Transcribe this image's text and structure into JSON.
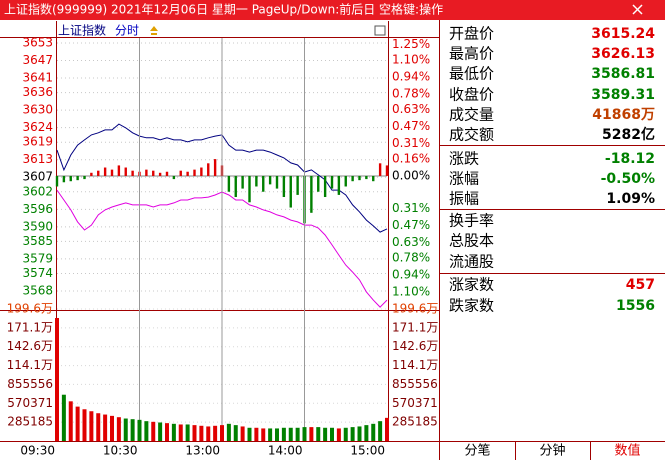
{
  "title_bar": {
    "title": "上证指数(999999) 2021年12月06日 星期一 PageUp/Down:前后日 空格键:操作"
  },
  "chart_data": [
    {
      "type": "line",
      "title": "上证指数",
      "subtitle": "分时",
      "x": [
        "09:30",
        "09:35",
        "09:40",
        "09:45",
        "09:50",
        "09:55",
        "10:00",
        "10:05",
        "10:10",
        "10:15",
        "10:20",
        "10:25",
        "10:30",
        "10:35",
        "10:40",
        "10:45",
        "10:50",
        "10:55",
        "11:00",
        "11:05",
        "11:10",
        "11:15",
        "11:20",
        "11:25",
        "11:30",
        "13:05",
        "13:10",
        "13:15",
        "13:20",
        "13:25",
        "13:30",
        "13:35",
        "13:40",
        "13:45",
        "13:50",
        "13:55",
        "14:00",
        "14:05",
        "14:10",
        "14:15",
        "14:20",
        "14:25",
        "14:30",
        "14:35",
        "14:40",
        "14:45",
        "14:50",
        "14:55",
        "15:00"
      ],
      "xlim": [
        "09:30",
        "15:00"
      ],
      "ylim": [
        3561.5,
        3654.7
      ],
      "yticks": [
        3653,
        3647,
        3641,
        3636,
        3630,
        3624,
        3619,
        3613,
        3607,
        3602,
        3596,
        3590,
        3585,
        3579,
        3574,
        3568
      ],
      "y2lim": [
        -1.273,
        1.31
      ],
      "y2ticks": [
        {
          "value": 1.25,
          "label": "1.25%"
        },
        {
          "value": 1.1,
          "label": "1.10%"
        },
        {
          "value": 0.94,
          "label": "0.94%"
        },
        {
          "value": 0.78,
          "label": "0.78%"
        },
        {
          "value": 0.63,
          "label": "0.63%"
        },
        {
          "value": 0.47,
          "label": "0.47%"
        },
        {
          "value": 0.31,
          "label": "0.31%"
        },
        {
          "value": 0.16,
          "label": "0.16%"
        },
        {
          "value": 0,
          "label": "0.00%"
        },
        {
          "value": -0.31,
          "label": "0.31%"
        },
        {
          "value": -0.47,
          "label": "0.47%"
        },
        {
          "value": -0.63,
          "label": "0.63%"
        },
        {
          "value": -0.78,
          "label": "0.78%"
        },
        {
          "value": -0.94,
          "label": "0.94%"
        },
        {
          "value": -1.1,
          "label": "1.10%"
        }
      ],
      "grid": true,
      "series": [
        {
          "color": "#000080",
          "values": [
            3616.3,
            3609.5,
            3614.6,
            3618.0,
            3619.8,
            3621.5,
            3622.2,
            3623.2,
            3623.2,
            3625.2,
            3623.9,
            3622.2,
            3621.1,
            3620.5,
            3620.5,
            3619.8,
            3620.5,
            3619.8,
            3619.8,
            3619.1,
            3619.8,
            3619.8,
            3620.5,
            3621.1,
            3621.5,
            3618.0,
            3616.3,
            3616.3,
            3615.6,
            3616.3,
            3616.3,
            3615.6,
            3614.6,
            3613.6,
            3611.9,
            3611.2,
            3608.8,
            3609.5,
            3607.8,
            3606.1,
            3602.6,
            3602.6,
            3600.9,
            3597.5,
            3595.1,
            3592.3,
            3590.3,
            3588.2,
            3589.3
          ]
        },
        {
          "color": "#e000e0",
          "values": [
            3602.6,
            3599.2,
            3595.8,
            3591.7,
            3588.9,
            3590.6,
            3594.1,
            3595.8,
            3596.8,
            3597.5,
            3598.2,
            3597.5,
            3597.5,
            3597.5,
            3596.8,
            3597.5,
            3597.5,
            3598.2,
            3599.2,
            3599.2,
            3599.9,
            3599.9,
            3600.2,
            3600.9,
            3601.9,
            3600.9,
            3599.2,
            3599.2,
            3597.5,
            3596.8,
            3595.8,
            3595.1,
            3594.1,
            3593.4,
            3592.3,
            3591.7,
            3590.6,
            3590.6,
            3589.6,
            3587.2,
            3583.8,
            3580.3,
            3576.9,
            3574.5,
            3571.8,
            3567.7,
            3564.9,
            3562.5,
            3564.9
          ]
        },
        {
          "kind": "bar",
          "axis": "y2",
          "color": "#e00000",
          "down_color": "#008000",
          "values": [
            -0.1,
            -0.06,
            -0.05,
            -0.04,
            -0.03,
            0.03,
            0.05,
            0.08,
            0.06,
            0.1,
            0.08,
            0.05,
            0.04,
            0.06,
            0.05,
            0.03,
            0.04,
            -0.03,
            0.05,
            0.04,
            0.06,
            0.08,
            0.12,
            0.16,
            0.1,
            -0.15,
            -0.2,
            -0.12,
            -0.25,
            -0.1,
            -0.15,
            -0.08,
            -0.12,
            -0.2,
            -0.3,
            -0.18,
            -0.45,
            -0.35,
            -0.15,
            -0.2,
            -0.12,
            -0.18,
            -0.1,
            -0.05,
            -0.04,
            -0.03,
            -0.05,
            0.12,
            0.1
          ]
        }
      ]
    },
    {
      "type": "bar",
      "x": [
        "09:30",
        "09:35",
        "09:40",
        "09:45",
        "09:50",
        "09:55",
        "10:00",
        "10:05",
        "10:10",
        "10:15",
        "10:20",
        "10:25",
        "10:30",
        "10:35",
        "10:40",
        "10:45",
        "10:50",
        "10:55",
        "11:00",
        "11:05",
        "11:10",
        "11:15",
        "11:20",
        "11:25",
        "11:30",
        "13:05",
        "13:10",
        "13:15",
        "13:20",
        "13:25",
        "13:30",
        "13:35",
        "13:40",
        "13:45",
        "13:50",
        "13:55",
        "14:00",
        "14:05",
        "14:10",
        "14:15",
        "14:20",
        "14:25",
        "14:30",
        "14:35",
        "14:40",
        "14:45",
        "14:50",
        "14:55",
        "15:00"
      ],
      "xlim": [
        "09:30",
        "15:00"
      ],
      "xticks": [
        "09:30",
        "10:30",
        "13:00",
        "14:00",
        "15:00"
      ],
      "ylim": [
        0,
        1996296
      ],
      "yticks": [
        285185,
        570371,
        855556,
        {
          "value": 1140741,
          "label": "114.1万"
        },
        {
          "value": 1425926,
          "label": "142.6万"
        },
        {
          "value": 1711111,
          "label": "171.1万"
        },
        {
          "value": 1996296,
          "label": "199.6万"
        }
      ],
      "color": "#e00000",
      "down_color": "#008000",
      "values": [
        1860000,
        700000,
        600000,
        520000,
        480000,
        450000,
        420000,
        400000,
        380000,
        360000,
        340000,
        330000,
        320000,
        300000,
        290000,
        280000,
        270000,
        260000,
        250000,
        250000,
        240000,
        230000,
        220000,
        230000,
        240000,
        260000,
        240000,
        220000,
        200000,
        200000,
        190000,
        190000,
        190000,
        200000,
        200000,
        200000,
        210000,
        210000,
        210000,
        200000,
        200000,
        190000,
        200000,
        210000,
        220000,
        240000,
        260000,
        300000,
        350000
      ]
    }
  ],
  "panel": {
    "groups": [
      [
        {
          "label": "开盘价",
          "value": "3615.24",
          "color": "#e00000"
        },
        {
          "label": "最高价",
          "value": "3626.13",
          "color": "#e00000"
        },
        {
          "label": "最低价",
          "value": "3586.81",
          "color": "#008000"
        },
        {
          "label": "收盘价",
          "value": "3589.31",
          "color": "#008000"
        },
        {
          "label": "成交量",
          "value": "41868万",
          "color": "#c04000"
        },
        {
          "label": "成交额",
          "value": "5282亿",
          "color": "#000000"
        }
      ],
      [
        {
          "label": "涨跌",
          "value": "-18.12",
          "color": "#008000"
        },
        {
          "label": "涨幅",
          "value": "-0.50%",
          "color": "#008000"
        },
        {
          "label": "振幅",
          "value": "1.09%",
          "color": "#000000"
        }
      ],
      [
        {
          "label": "换手率"
        },
        {
          "label": "总股本"
        },
        {
          "label": "流通股"
        }
      ],
      [
        {
          "label": "涨家数",
          "value": "457",
          "color": "#e00000"
        },
        {
          "label": "跌家数",
          "value": "1556",
          "color": "#008000"
        }
      ]
    ]
  },
  "tabs": {
    "items": [
      "分笔",
      "分钟",
      "数值"
    ],
    "active": 2
  }
}
